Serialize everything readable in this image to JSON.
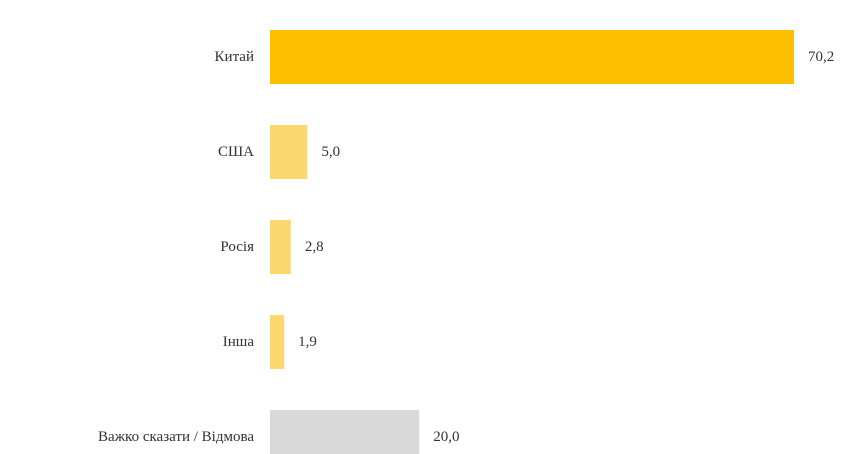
{
  "chart_data": {
    "type": "bar",
    "orientation": "horizontal",
    "title": "",
    "xlabel": "",
    "ylabel": "",
    "grid": false,
    "legend": "none",
    "categories": [
      "Китай",
      "США",
      "Росія",
      "Інша",
      "Важко сказати / Відмова"
    ],
    "values": [
      70.2,
      5.0,
      2.8,
      1.9,
      20.0
    ],
    "value_labels": [
      "70,2",
      "5,0",
      "2,8",
      "1,9",
      "20,0"
    ],
    "bar_colors": [
      "#FBBF00",
      "#FCD76D",
      "#FCD76D",
      "#FCD76D",
      "#D9D9D9"
    ],
    "xlim": [
      0,
      70.2
    ]
  }
}
